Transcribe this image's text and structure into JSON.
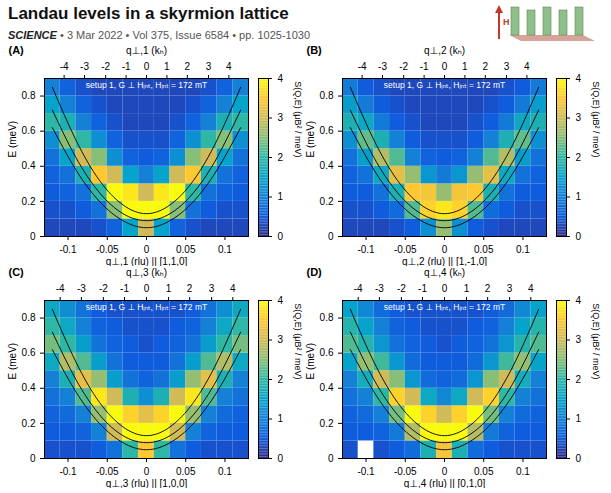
{
  "header": {
    "title": "Landau levels in a skyrmion lattice",
    "journal": "SCIENCE",
    "details": "• 3 Mar 2022 • Vol 375, Issue 6584 • pp. 1025-1030",
    "inset_label": "H"
  },
  "chart_data": [
    {
      "type": "heatmap",
      "panel": "(A)",
      "title": "setup 1, G ⊥ Hᵢₙₜ, Hᵢₙₜ = 172 mT",
      "xlabel": "q⊥,1 (rlu) || [1,1,0]",
      "x2label": "q⊥,1 (kₕ)",
      "ylabel": "E (meV)",
      "xlim": [
        -0.13,
        0.13
      ],
      "xticks": [
        -0.1,
        -0.05,
        0,
        0.05,
        0.1
      ],
      "x2ticks": [
        {
          "value": -0.105,
          "label": "-4"
        },
        {
          "value": -0.079,
          "label": "-3"
        },
        {
          "value": -0.052,
          "label": "-2"
        },
        {
          "value": -0.026,
          "label": "-1"
        },
        {
          "value": 0,
          "label": "0"
        },
        {
          "value": 0.026,
          "label": "1"
        },
        {
          "value": 0.052,
          "label": "2"
        },
        {
          "value": 0.079,
          "label": "3"
        },
        {
          "value": 0.105,
          "label": "4"
        }
      ],
      "ylim": [
        0,
        0.9
      ],
      "yticks": [
        0,
        0.2,
        0.4,
        0.6,
        0.8
      ],
      "colorbar": {
        "label": "S(Q,E) (μB² / meV)",
        "range": [
          0,
          4
        ],
        "ticks": [
          0,
          1,
          2,
          3,
          4
        ]
      },
      "cells": {
        "q_edges": [
          -0.13,
          -0.11,
          -0.09,
          -0.07,
          -0.05,
          -0.03,
          -0.01,
          0.01,
          0.03,
          0.05,
          0.07,
          0.09,
          0.11,
          0.13
        ],
        "E_edges": [
          0,
          0.1,
          0.2,
          0.3,
          0.4,
          0.5,
          0.6,
          0.7,
          0.8,
          0.9
        ],
        "S": [
          [
            0.3,
            0.3,
            0.3,
            0.4,
            0.6,
            1.5,
            3.0,
            1.5,
            0.6,
            0.4,
            0.3,
            0.3,
            0.3
          ],
          [
            0.4,
            0.4,
            0.5,
            0.8,
            2.5,
            4.0,
            4.0,
            4.0,
            2.5,
            0.8,
            0.5,
            0.4,
            0.4
          ],
          [
            0.5,
            0.6,
            0.8,
            2.0,
            4.0,
            3.8,
            3.0,
            3.8,
            4.0,
            2.0,
            0.8,
            0.6,
            0.5
          ],
          [
            0.6,
            0.8,
            1.8,
            3.5,
            3.0,
            1.5,
            1.0,
            1.5,
            3.0,
            3.5,
            1.8,
            0.8,
            0.6
          ],
          [
            0.8,
            1.5,
            3.0,
            2.5,
            1.2,
            0.6,
            0.5,
            0.6,
            1.2,
            2.5,
            3.0,
            1.5,
            0.8
          ],
          [
            1.2,
            2.5,
            2.0,
            1.2,
            0.6,
            0.4,
            0.4,
            0.4,
            0.6,
            1.2,
            2.0,
            2.5,
            1.2
          ],
          [
            2.0,
            1.8,
            1.0,
            0.6,
            0.4,
            0.3,
            0.3,
            0.3,
            0.4,
            0.6,
            1.0,
            1.8,
            2.0
          ],
          [
            1.5,
            1.0,
            0.6,
            0.4,
            0.3,
            0.3,
            0.3,
            0.3,
            0.3,
            0.4,
            0.6,
            1.0,
            1.5
          ],
          [
            1.0,
            0.6,
            0.4,
            0.3,
            0.3,
            0.3,
            0.3,
            0.3,
            0.3,
            0.3,
            0.4,
            0.6,
            1.0
          ]
        ]
      },
      "theory": {
        "q": [
          -0.12,
          -0.09,
          -0.06,
          -0.03,
          0,
          0.03,
          0.06,
          0.09,
          0.12
        ],
        "curves": [
          [
            0.62,
            0.38,
            0.2,
            0.09,
            0.05,
            0.09,
            0.2,
            0.38,
            0.62
          ],
          [
            0.72,
            0.45,
            0.25,
            0.13,
            0.09,
            0.13,
            0.25,
            0.45,
            0.72
          ],
          [
            0.85,
            0.55,
            0.32,
            0.18,
            0.13,
            0.18,
            0.32,
            0.55,
            0.85
          ]
        ]
      }
    },
    {
      "type": "heatmap",
      "panel": "(B)",
      "title": "setup 1, G ⊥ Hᵢₙₜ, Hᵢₙₜ = 172 mT",
      "xlabel": "q⊥,2 (rlu) || [1,-1,0]",
      "x2label": "q⊥,2 (kₕ)",
      "ylabel": "E (meV)",
      "xlim": [
        -0.13,
        0.13
      ],
      "xticks": [
        -0.1,
        -0.05,
        0,
        0.05,
        0.1
      ],
      "x2ticks": [
        {
          "value": -0.105,
          "label": "-4"
        },
        {
          "value": -0.079,
          "label": "-3"
        },
        {
          "value": -0.052,
          "label": "-2"
        },
        {
          "value": -0.026,
          "label": "-1"
        },
        {
          "value": 0,
          "label": "0"
        },
        {
          "value": 0.026,
          "label": "1"
        },
        {
          "value": 0.052,
          "label": "2"
        },
        {
          "value": 0.079,
          "label": "3"
        },
        {
          "value": 0.105,
          "label": "4"
        }
      ],
      "ylim": [
        0,
        0.9
      ],
      "yticks": [
        0,
        0.2,
        0.4,
        0.6,
        0.8
      ],
      "colorbar": {
        "label": "S(Q,E) (μB² / meV)",
        "range": [
          0,
          4
        ],
        "ticks": [
          0,
          1,
          2,
          3,
          4
        ]
      },
      "cells": {
        "q_edges": [
          -0.13,
          -0.11,
          -0.09,
          -0.07,
          -0.05,
          -0.03,
          -0.01,
          0.01,
          0.03,
          0.05,
          0.07,
          0.09,
          0.11,
          0.13
        ],
        "E_edges": [
          0,
          0.1,
          0.2,
          0.3,
          0.4,
          0.5,
          0.6,
          0.7,
          0.8,
          0.9
        ],
        "S": [
          [
            0.3,
            0.3,
            0.3,
            0.4,
            0.5,
            1.2,
            2.6,
            1.2,
            0.5,
            0.4,
            0.3,
            0.3,
            0.3
          ],
          [
            0.4,
            0.4,
            0.5,
            0.7,
            2.2,
            3.6,
            3.8,
            3.6,
            2.2,
            0.7,
            0.5,
            0.4,
            0.4
          ],
          [
            0.5,
            0.5,
            0.8,
            1.8,
            3.5,
            3.4,
            2.6,
            3.4,
            3.5,
            1.8,
            0.8,
            0.5,
            0.5
          ],
          [
            0.6,
            0.8,
            1.6,
            3.2,
            2.6,
            1.3,
            0.9,
            1.3,
            2.6,
            3.2,
            1.6,
            0.8,
            0.6
          ],
          [
            0.8,
            1.4,
            2.8,
            2.2,
            1.0,
            0.6,
            0.5,
            0.6,
            1.0,
            2.2,
            2.8,
            1.4,
            0.8
          ],
          [
            1.2,
            2.3,
            1.8,
            1.0,
            0.5,
            0.4,
            0.4,
            0.4,
            0.5,
            1.0,
            1.8,
            2.3,
            1.2
          ],
          [
            1.8,
            1.6,
            0.9,
            0.5,
            0.4,
            0.3,
            0.3,
            0.3,
            0.4,
            0.5,
            0.9,
            1.6,
            1.8
          ],
          [
            1.4,
            0.9,
            0.5,
            0.4,
            0.3,
            0.3,
            0.3,
            0.3,
            0.3,
            0.4,
            0.5,
            0.9,
            1.4
          ],
          [
            0.9,
            0.5,
            0.4,
            0.3,
            0.3,
            0.3,
            0.3,
            0.3,
            0.3,
            0.3,
            0.4,
            0.5,
            0.9
          ]
        ]
      },
      "theory": {
        "q": [
          -0.12,
          -0.09,
          -0.06,
          -0.03,
          0,
          0.03,
          0.06,
          0.09,
          0.12
        ],
        "curves": [
          [
            0.62,
            0.38,
            0.2,
            0.09,
            0.05,
            0.09,
            0.2,
            0.38,
            0.62
          ],
          [
            0.72,
            0.45,
            0.25,
            0.13,
            0.09,
            0.13,
            0.25,
            0.45,
            0.72
          ],
          [
            0.85,
            0.55,
            0.32,
            0.18,
            0.13,
            0.18,
            0.32,
            0.55,
            0.85
          ]
        ]
      }
    },
    {
      "type": "heatmap",
      "panel": "(C)",
      "title": "setup 1, G ⊥ Hᵢₙₜ, Hᵢₙₜ = 172 mT",
      "xlabel": "q⊥,3 (rlu) || [1,0,0]",
      "x2label": "q⊥,3 (kₕ)",
      "ylabel": "E (meV)",
      "xlim": [
        -0.13,
        0.13
      ],
      "xticks": [
        -0.1,
        -0.05,
        0,
        0.05,
        0.1
      ],
      "x2ticks": [
        {
          "value": -0.11,
          "label": "-4"
        },
        {
          "value": -0.083,
          "label": "-3"
        },
        {
          "value": -0.055,
          "label": "-2"
        },
        {
          "value": -0.028,
          "label": "-1"
        },
        {
          "value": 0,
          "label": "0"
        },
        {
          "value": 0.028,
          "label": "1"
        },
        {
          "value": 0.055,
          "label": "2"
        },
        {
          "value": 0.083,
          "label": "3"
        },
        {
          "value": 0.11,
          "label": "4"
        }
      ],
      "ylim": [
        0,
        0.9
      ],
      "yticks": [
        0,
        0.2,
        0.4,
        0.6,
        0.8
      ],
      "colorbar": {
        "label": "S(Q,E) (μB² / meV)",
        "range": [
          0,
          4
        ],
        "ticks": [
          0,
          1,
          2,
          3,
          4
        ]
      },
      "cells": {
        "q_edges": [
          -0.13,
          -0.11,
          -0.09,
          -0.07,
          -0.05,
          -0.03,
          -0.01,
          0.01,
          0.03,
          0.05,
          0.07,
          0.09,
          0.11,
          0.13
        ],
        "E_edges": [
          0,
          0.1,
          0.2,
          0.3,
          0.4,
          0.5,
          0.6,
          0.7,
          0.8,
          0.9
        ],
        "S": [
          [
            0.4,
            0.4,
            0.4,
            0.5,
            0.8,
            2.0,
            3.5,
            2.0,
            0.8,
            0.5,
            0.4,
            0.4,
            0.4
          ],
          [
            0.5,
            0.5,
            0.6,
            1.0,
            3.0,
            4.0,
            4.0,
            4.0,
            3.0,
            1.0,
            0.6,
            0.5,
            0.5
          ],
          [
            0.6,
            0.7,
            1.0,
            2.6,
            4.0,
            3.6,
            3.2,
            3.6,
            4.0,
            2.6,
            1.0,
            0.7,
            0.6
          ],
          [
            0.8,
            1.0,
            2.2,
            3.8,
            3.0,
            1.8,
            1.2,
            1.8,
            3.0,
            3.8,
            2.2,
            1.0,
            0.8
          ],
          [
            1.0,
            1.8,
            3.2,
            2.6,
            1.4,
            0.8,
            0.6,
            0.8,
            1.4,
            2.6,
            3.2,
            1.8,
            1.0
          ],
          [
            1.6,
            2.8,
            2.2,
            1.4,
            0.8,
            0.5,
            0.5,
            0.5,
            0.8,
            1.4,
            2.2,
            2.8,
            1.6
          ],
          [
            2.4,
            2.0,
            1.4,
            0.8,
            0.6,
            0.5,
            0.4,
            0.5,
            0.6,
            0.8,
            1.4,
            2.0,
            2.4
          ],
          [
            2.0,
            1.6,
            1.0,
            0.6,
            0.5,
            0.4,
            0.4,
            0.4,
            0.5,
            0.6,
            1.0,
            1.6,
            2.0
          ],
          [
            1.6,
            1.2,
            0.8,
            0.5,
            0.4,
            0.4,
            0.4,
            0.4,
            0.4,
            0.5,
            0.8,
            1.2,
            1.6
          ]
        ]
      },
      "theory": {
        "q": [
          -0.12,
          -0.09,
          -0.06,
          -0.03,
          0,
          0.03,
          0.06,
          0.09,
          0.12
        ],
        "curves": [
          [
            0.62,
            0.38,
            0.2,
            0.09,
            0.05,
            0.09,
            0.2,
            0.38,
            0.62
          ],
          [
            0.72,
            0.45,
            0.25,
            0.13,
            0.09,
            0.13,
            0.25,
            0.45,
            0.72
          ],
          [
            0.85,
            0.55,
            0.32,
            0.18,
            0.13,
            0.18,
            0.32,
            0.55,
            0.85
          ]
        ]
      }
    },
    {
      "type": "heatmap",
      "panel": "(D)",
      "title": "setup 1, G ⊥ Hᵢₙₜ, Hᵢₙₜ = 172 mT",
      "xlabel": "q⊥,4 (rlu) || [0,1,0]",
      "x2label": "q⊥,4 (kₕ)",
      "ylabel": "E (meV)",
      "xlim": [
        -0.13,
        0.13
      ],
      "xticks": [
        -0.1,
        -0.05,
        0,
        0.05,
        0.1
      ],
      "x2ticks": [
        {
          "value": -0.11,
          "label": "-4"
        },
        {
          "value": -0.083,
          "label": "-3"
        },
        {
          "value": -0.055,
          "label": "-2"
        },
        {
          "value": -0.028,
          "label": "-1"
        },
        {
          "value": 0,
          "label": "0"
        },
        {
          "value": 0.028,
          "label": "1"
        },
        {
          "value": 0.055,
          "label": "2"
        },
        {
          "value": 0.083,
          "label": "3"
        },
        {
          "value": 0.11,
          "label": "4"
        }
      ],
      "ylim": [
        0,
        0.9
      ],
      "yticks": [
        0,
        0.2,
        0.4,
        0.6,
        0.8
      ],
      "colorbar": {
        "label": "S(Q,E) (μB² / meV)",
        "range": [
          0,
          4
        ],
        "ticks": [
          0,
          1,
          2,
          3,
          4
        ]
      },
      "cells": {
        "q_edges": [
          -0.13,
          -0.11,
          -0.09,
          -0.07,
          -0.05,
          -0.03,
          -0.01,
          0.01,
          0.03,
          0.05,
          0.07,
          0.09,
          0.11,
          0.13
        ],
        "E_edges": [
          0,
          0.1,
          0.2,
          0.3,
          0.4,
          0.5,
          0.6,
          0.7,
          0.8,
          0.9
        ],
        "S": [
          [
            0.4,
            null,
            0.4,
            0.5,
            0.7,
            1.8,
            3.4,
            1.8,
            0.7,
            0.5,
            0.4,
            0.4,
            0.4
          ],
          [
            0.5,
            0.5,
            0.6,
            0.9,
            2.8,
            4.0,
            4.0,
            4.0,
            2.8,
            0.9,
            0.6,
            0.5,
            0.5
          ],
          [
            0.6,
            0.7,
            1.0,
            2.4,
            4.0,
            3.6,
            3.0,
            3.6,
            4.0,
            2.4,
            1.0,
            0.7,
            0.6
          ],
          [
            0.8,
            1.0,
            2.0,
            3.6,
            3.0,
            1.6,
            1.1,
            1.6,
            3.0,
            3.6,
            2.0,
            1.0,
            0.8
          ],
          [
            1.0,
            1.7,
            3.0,
            2.5,
            1.3,
            0.7,
            0.6,
            0.7,
            1.3,
            2.5,
            3.0,
            1.7,
            1.0
          ],
          [
            1.5,
            2.6,
            2.1,
            1.3,
            0.7,
            0.5,
            0.5,
            0.5,
            0.7,
            1.3,
            2.1,
            2.6,
            1.5
          ],
          [
            2.2,
            1.9,
            1.3,
            0.8,
            0.6,
            0.5,
            0.4,
            0.5,
            0.6,
            0.8,
            1.3,
            1.9,
            2.2
          ],
          [
            1.9,
            1.5,
            1.0,
            0.6,
            0.5,
            0.4,
            0.4,
            0.4,
            0.5,
            0.6,
            1.0,
            1.5,
            1.9
          ],
          [
            1.5,
            1.1,
            0.7,
            0.5,
            0.4,
            0.4,
            0.4,
            0.4,
            0.4,
            0.5,
            0.7,
            1.1,
            1.5
          ]
        ]
      },
      "theory": {
        "q": [
          -0.12,
          -0.09,
          -0.06,
          -0.03,
          0,
          0.03,
          0.06,
          0.09,
          0.12
        ],
        "curves": [
          [
            0.62,
            0.38,
            0.2,
            0.09,
            0.05,
            0.09,
            0.2,
            0.38,
            0.62
          ],
          [
            0.72,
            0.45,
            0.25,
            0.13,
            0.09,
            0.13,
            0.25,
            0.45,
            0.72
          ],
          [
            0.85,
            0.55,
            0.32,
            0.18,
            0.13,
            0.18,
            0.32,
            0.55,
            0.85
          ]
        ]
      }
    }
  ]
}
